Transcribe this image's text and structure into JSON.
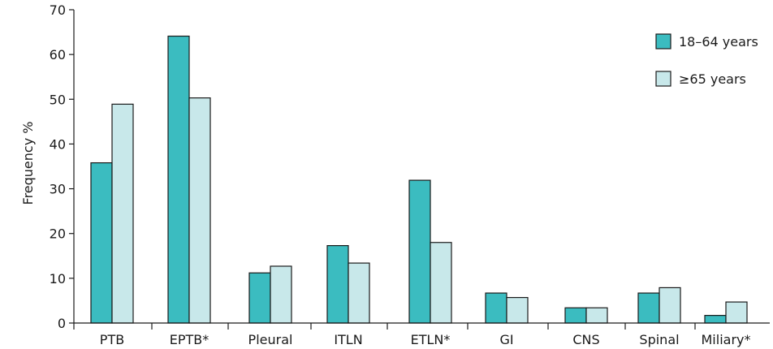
{
  "chart_data": {
    "type": "bar",
    "title": "",
    "xlabel": "",
    "ylabel": "Frequency %",
    "ylim": [
      0,
      70
    ],
    "yticks": [
      0,
      10,
      20,
      30,
      40,
      50,
      60,
      70
    ],
    "categories": [
      "PTB",
      "EPTB*",
      "Pleural",
      "ITLN",
      "ETLN*",
      "GI",
      "CNS",
      "Spinal",
      "Miliary*"
    ],
    "series": [
      {
        "name": "18–64 years",
        "color": "#3bbcc0",
        "values": [
          35.8,
          64.1,
          11.2,
          17.3,
          31.9,
          6.7,
          3.4,
          6.7,
          1.7
        ]
      },
      {
        "name": "≥65 years",
        "color": "#c8e8ea",
        "values": [
          48.9,
          50.3,
          12.7,
          13.4,
          18.0,
          5.7,
          3.4,
          7.9,
          4.7
        ]
      }
    ],
    "legend_position": "top-right",
    "grid": false
  }
}
